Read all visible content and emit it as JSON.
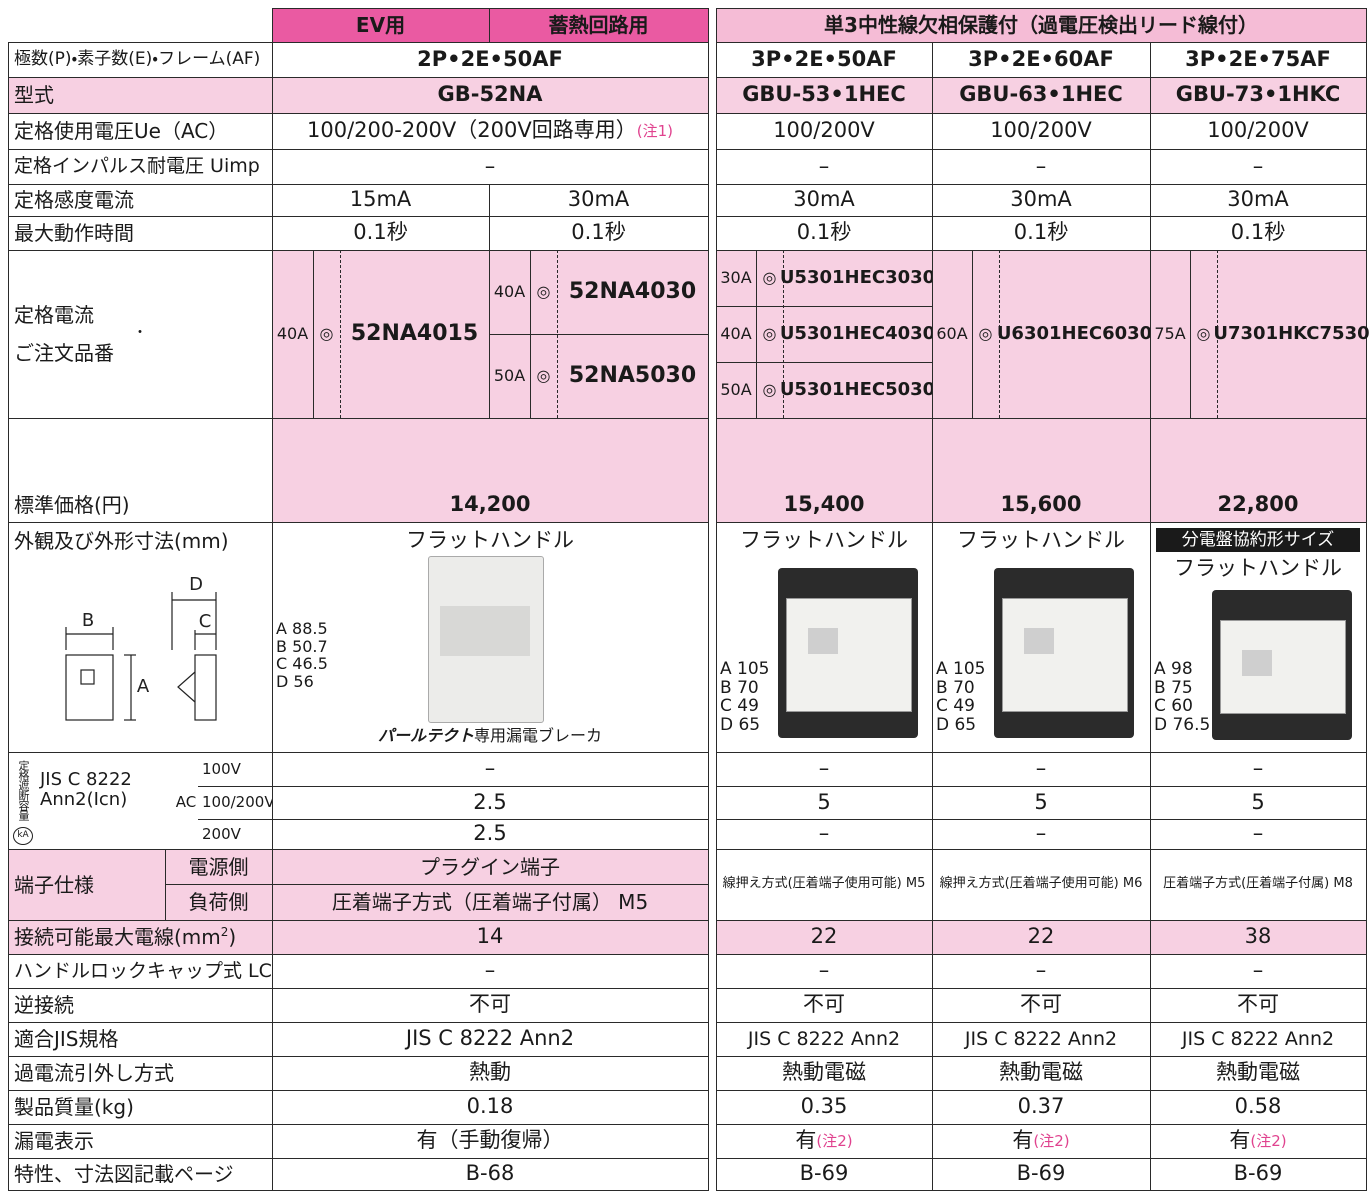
{
  "header": {
    "ev": "EV用",
    "heat": "蓄熱回路用",
    "protected": "単3中性線欠相保護付（過電圧検出リード線付）"
  },
  "poles": {
    "label": "極数(P)・素子数(E)・フレーム(AF)",
    "left": "2P•2E•50AF",
    "right": [
      "3P•2E•50AF",
      "3P•2E•60AF",
      "3P•2E•75AF"
    ]
  },
  "model": {
    "label": "型式",
    "left": "GB-52NA",
    "right": [
      "GBU-53•1HEC",
      "GBU-63•1HEC",
      "GBU-73•1HKC"
    ]
  },
  "voltage": {
    "label": "定格使用電圧Ue（AC）",
    "left": {
      "text": "100/200-200V（200V回路専用）",
      "note": "(注1)"
    },
    "right": [
      "100/200V",
      "100/200V",
      "100/200V"
    ]
  },
  "impulse": {
    "label": "定格インパルス耐電圧 Uimp",
    "left": "–",
    "right": [
      "–",
      "–",
      "–"
    ]
  },
  "sensitivity": {
    "label": "定格感度電流",
    "left": [
      "15mA",
      "30mA"
    ],
    "right": [
      "30mA",
      "30mA",
      "30mA"
    ]
  },
  "time": {
    "label": "最大動作時間",
    "left": [
      "0.1秒",
      "0.1秒"
    ],
    "right": [
      "0.1秒",
      "0.1秒",
      "0.1秒"
    ]
  },
  "current": {
    "label": [
      "定格電流",
      "・",
      "ご注文品番"
    ],
    "ev": [
      {
        "amp": "40A",
        "mark": "◎",
        "code": "52NA4015"
      }
    ],
    "heat": [
      {
        "amp": "40A",
        "mark": "◎",
        "code": "52NA4030"
      },
      {
        "amp": "50A",
        "mark": "◎",
        "code": "52NA5030"
      }
    ],
    "right": [
      [
        {
          "amp": "30A",
          "mark": "◎",
          "code": "U5301HEC3030"
        },
        {
          "amp": "40A",
          "mark": "◎",
          "code": "U5301HEC4030"
        },
        {
          "amp": "50A",
          "mark": "◎",
          "code": "U5301HEC5030"
        }
      ],
      [
        {
          "amp": "60A",
          "mark": "◎",
          "code": "U6301HEC6030"
        }
      ],
      [
        {
          "amp": "75A",
          "mark": "◎",
          "code": "U7301HKC7530"
        }
      ]
    ]
  },
  "price": {
    "label": "標準価格(円)",
    "left": "14,200",
    "right": [
      "15,400",
      "15,600",
      "22,800"
    ]
  },
  "appearance": {
    "label": "外観及び外形寸法(mm)",
    "diagram": {
      "b": "B",
      "a": "A",
      "d": "D",
      "c": "C"
    },
    "left": {
      "handle": "フラットハンドル",
      "dims": [
        "A 88.5",
        "B 50.7",
        "C 46.5",
        "D 56"
      ],
      "brand": "パールテクト",
      "caption": "専用漏電ブレーカ"
    },
    "right": [
      {
        "handle": "フラットハンドル",
        "dims": [
          "A 105",
          "B 70",
          "C 49",
          "D 65"
        ]
      },
      {
        "handle": "フラットハンドル",
        "dims": [
          "A 105",
          "B 70",
          "C 49",
          "D 65"
        ]
      },
      {
        "badge": "分電盤協約形サイズ",
        "handle": "フラットハンドル",
        "dims": [
          "A 98",
          "B 75",
          "C 60",
          "D 76.5"
        ]
      }
    ]
  },
  "breaking": {
    "label": "定格遮断容量",
    "unit": "kA",
    "standard": [
      "JIS C 8222",
      "Ann2(Icn)"
    ],
    "ac": "AC",
    "voltages": [
      "100V",
      "100/200V",
      "200V"
    ],
    "left": [
      "–",
      "2.5",
      "2.5"
    ],
    "right": [
      [
        "–",
        "5",
        "–"
      ],
      [
        "–",
        "5",
        "–"
      ],
      [
        "–",
        "5",
        "–"
      ]
    ]
  },
  "terminal": {
    "label": "端子仕様",
    "sides": [
      "電源側",
      "負荷側"
    ],
    "left": [
      "プラグイン端子",
      "圧着端子方式（圧着端子付属） M5"
    ],
    "right": [
      "線押え方式(圧着端子使用可能) M5",
      "線押え方式(圧着端子使用可能) M6",
      "圧着端子方式(圧着端子付属) M8"
    ]
  },
  "wire": {
    "label": "接続可能最大電線(mm",
    "sup": "2",
    "label_end": ")",
    "left": "14",
    "right": [
      "22",
      "22",
      "38"
    ]
  },
  "lock": {
    "label": "ハンドルロックキャップ式 LC",
    "left": "–",
    "right": [
      "–",
      "–",
      "–"
    ]
  },
  "reverse": {
    "label": "逆接続",
    "left": "不可",
    "right": [
      "不可",
      "不可",
      "不可"
    ]
  },
  "jis": {
    "label": "適合JIS規格",
    "left": "JIS C 8222 Ann2",
    "right": [
      "JIS C 8222 Ann2",
      "JIS C 8222 Ann2",
      "JIS C 8222 Ann2"
    ]
  },
  "trip": {
    "label": "過電流引外し方式",
    "left": "熱動",
    "right": [
      "熱動電磁",
      "熱動電磁",
      "熱動電磁"
    ]
  },
  "weight": {
    "label": "製品質量(kg)",
    "left": "0.18",
    "right": [
      "0.35",
      "0.37",
      "0.58"
    ]
  },
  "leak": {
    "label": "漏電表示",
    "left": "有（手動復帰）",
    "right": [
      {
        "text": "有",
        "note": "(注2)"
      },
      {
        "text": "有",
        "note": "(注2)"
      },
      {
        "text": "有",
        "note": "(注2)"
      }
    ]
  },
  "page": {
    "label": "特性、寸法図記載ページ",
    "left": "B-68",
    "right": [
      "B-69",
      "B-69",
      "B-69"
    ]
  }
}
